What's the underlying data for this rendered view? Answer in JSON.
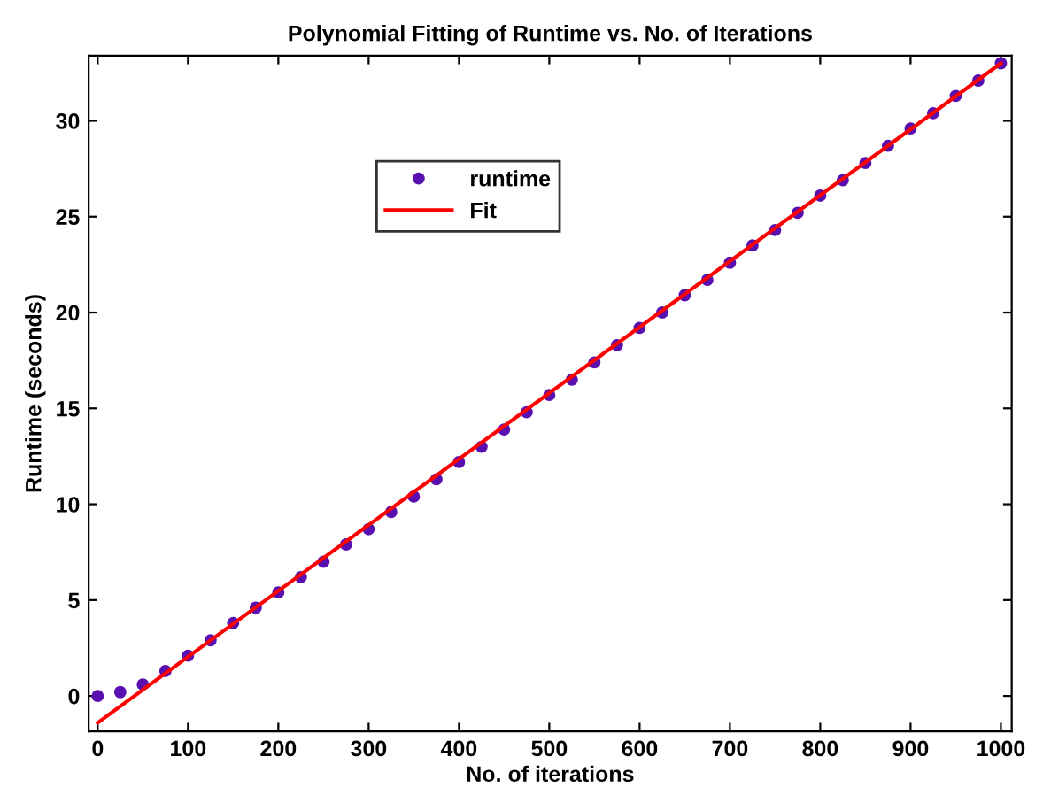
{
  "chart_data": {
    "type": "scatter",
    "title": "Polynomial Fitting of Runtime vs. No. of Iterations",
    "xlabel": "No. of iterations",
    "ylabel": "Runtime (seconds)",
    "xlim": [
      -10,
      1012
    ],
    "ylim": [
      -1.85,
      33.4
    ],
    "xticks": [
      0,
      100,
      200,
      300,
      400,
      500,
      600,
      700,
      800,
      900,
      1000
    ],
    "yticks": [
      0,
      5,
      10,
      15,
      20,
      25,
      30
    ],
    "grid": false,
    "legend": "top left",
    "series": [
      {
        "name": "runtime",
        "marker": "circle",
        "color": "#5a10b0",
        "x": [
          0,
          25,
          50,
          75,
          100,
          125,
          150,
          175,
          200,
          225,
          250,
          275,
          300,
          325,
          350,
          375,
          400,
          425,
          450,
          475,
          500,
          525,
          550,
          575,
          600,
          625,
          650,
          675,
          700,
          725,
          750,
          775,
          800,
          825,
          850,
          875,
          900,
          925,
          950,
          975,
          1000
        ],
        "values": [
          0,
          0.2,
          0.6,
          1.3,
          2.1,
          2.9,
          3.8,
          4.6,
          5.4,
          6.2,
          7.0,
          7.9,
          8.7,
          9.6,
          10.4,
          11.3,
          12.2,
          13.0,
          13.9,
          14.8,
          15.7,
          16.5,
          17.4,
          18.3,
          19.2,
          20.0,
          20.9,
          21.7,
          22.6,
          23.5,
          24.3,
          25.2,
          26.1,
          26.9,
          27.8,
          28.7,
          29.6,
          30.4,
          31.3,
          32.1,
          33.0
        ]
      },
      {
        "name": "Fit",
        "type": "line",
        "line_style": "solid",
        "color": "#ff0000",
        "x": [
          0,
          1000
        ],
        "values": [
          -1.4,
          33.0
        ]
      }
    ]
  }
}
